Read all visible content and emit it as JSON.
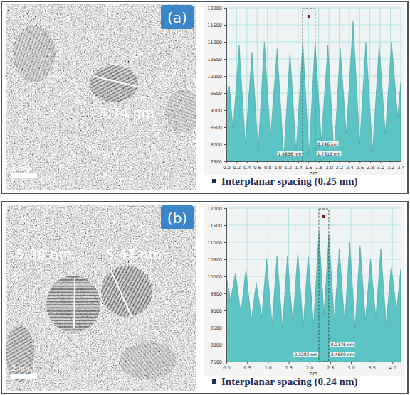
{
  "chart_data": [
    {
      "type": "area",
      "image": {
        "panel_label": "(a)",
        "annotations": [
          "3.74 nm"
        ],
        "scale_bar": "2 nm"
      },
      "x": [
        0,
        0.06,
        0.13,
        0.25,
        0.37,
        0.5,
        0.62,
        0.74,
        0.86,
        0.99,
        1.12,
        1.24,
        1.36,
        1.49,
        1.61,
        1.73,
        1.85,
        1.98,
        2.1,
        2.22,
        2.34,
        2.47,
        2.6,
        2.72,
        2.85,
        2.98,
        3.1,
        3.22,
        3.34,
        3.4
      ],
      "values": [
        9500,
        9700,
        8400,
        10900,
        8000,
        10700,
        7800,
        11000,
        8200,
        10800,
        7600,
        10700,
        7800,
        11000,
        7700,
        11000,
        8100,
        10900,
        7700,
        10800,
        8300,
        11600,
        8000,
        11000,
        7800,
        10900,
        8300,
        11000,
        8800,
        9800
      ],
      "color": "#5cc4c4",
      "xlim": [
        0,
        3.4
      ],
      "ylim": [
        7500,
        12000
      ],
      "xticks": [
        {
          "value": 0,
          "label": "0.0"
        },
        0.2,
        0.4,
        0.6,
        0.8,
        {
          "value": 1,
          "label": "1.0"
        },
        1.2,
        1.4,
        1.6,
        1.8,
        {
          "value": 2,
          "label": "2.0"
        },
        2.2,
        2.4,
        2.6,
        2.8,
        {
          "value": 3,
          "label": "3.0"
        },
        3.2,
        3.4
      ],
      "yticks": [
        7500,
        8000,
        8500,
        9000,
        9500,
        10000,
        10500,
        11000,
        11500,
        12000
      ],
      "grid": true,
      "x_label": "nm",
      "measurement": {
        "start": 1.4856,
        "end": 1.7316,
        "start_label": "1.4856 nm",
        "end_label": "1.7316 nm",
        "spacing_label": "0.246 nm"
      },
      "caption": "Interplanar spacing (0.25 nm)"
    },
    {
      "type": "area",
      "image": {
        "panel_label": "(b)",
        "annotations": [
          "5.38 nm",
          "5.47 nm"
        ],
        "scale_bar": "2 nm"
      },
      "x": [
        0,
        0.1,
        0.22,
        0.35,
        0.47,
        0.6,
        0.72,
        0.85,
        0.97,
        1.1,
        1.22,
        1.35,
        1.47,
        1.6,
        1.72,
        1.85,
        1.97,
        2.1,
        2.23,
        2.35,
        2.47,
        2.6,
        2.72,
        2.85,
        2.97,
        3.1,
        3.22,
        3.35,
        3.47,
        3.6,
        3.72,
        3.85,
        3.97,
        4.1,
        4.2
      ],
      "values": [
        10000,
        9300,
        10100,
        8900,
        10200,
        8700,
        9800,
        8800,
        10500,
        8600,
        10600,
        8500,
        10600,
        8600,
        10700,
        8500,
        10600,
        8600,
        11300,
        8900,
        11200,
        8700,
        10800,
        8600,
        11000,
        8500,
        10900,
        8700,
        10500,
        8800,
        10800,
        8600,
        10300,
        9000,
        10200
      ],
      "color": "#5cc4c4",
      "xlim": [
        0,
        4.2
      ],
      "ylim": [
        7500,
        12000
      ],
      "xticks": [
        {
          "value": 0,
          "label": "0.0"
        },
        0.5,
        {
          "value": 1,
          "label": "1.0"
        },
        1.5,
        {
          "value": 2,
          "label": "2.0"
        },
        2.5,
        {
          "value": 3,
          "label": "3.0"
        },
        3.5,
        {
          "value": 4,
          "label": "4.0"
        }
      ],
      "yticks": [
        7500,
        8000,
        8500,
        9000,
        9500,
        10000,
        10500,
        11000,
        11500,
        12000
      ],
      "grid": true,
      "x_label": "nm",
      "measurement": {
        "start": 2.2283,
        "end": 2.4659,
        "start_label": "2.2283 nm",
        "end_label": "2.4659 nm",
        "spacing_label": "0.2376 nm"
      },
      "caption": "Interplanar spacing (0.24 nm)"
    }
  ]
}
